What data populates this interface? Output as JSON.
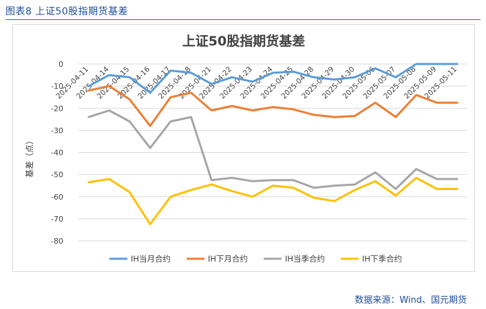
{
  "figure": {
    "caption": "图表8  上证50股指期货基差",
    "source": "数据来源：Wind、国元期货"
  },
  "chart_data": {
    "type": "line",
    "title": "上证50股指期货基差",
    "ylabel": "基差（点）",
    "xlabel": "",
    "ylim": [
      -80,
      0
    ],
    "yticks": [
      0,
      -10,
      -20,
      -30,
      -40,
      -50,
      -60,
      -70,
      -80
    ],
    "grid": true,
    "legend_position": "bottom",
    "categories": [
      "2025-04-11",
      "2025-04-14",
      "2025-04-15",
      "2025-04-16",
      "2025-04-17",
      "2025-04-18",
      "2025-04-21",
      "2025-04-22",
      "2025-04-23",
      "2025-04-24",
      "2025-04-25",
      "2025-04-28",
      "2025-04-29",
      "2025-04-30",
      "2025-05-06",
      "2025-05-07",
      "2025-05-08",
      "2025-05-09",
      "2025-05-11"
    ],
    "series": [
      {
        "name": "IH当月合约",
        "color": "#5b9bd5",
        "values": [
          -10,
          -5,
          -6,
          -13,
          -3,
          -4,
          -9,
          -6,
          -8,
          -4,
          -3.5,
          -6,
          -7,
          -6,
          -2,
          -6,
          0,
          0,
          0
        ]
      },
      {
        "name": "IH下月合约",
        "color": "#ed7d31",
        "values": [
          -12,
          -10,
          -16,
          -28,
          -15,
          -13,
          -21,
          -19,
          -21,
          -19.5,
          -20.5,
          -23,
          -24,
          -23.5,
          -17.5,
          -24,
          -14,
          -17.5,
          -17.5
        ]
      },
      {
        "name": "IH当季合约",
        "color": "#a5a5a5",
        "values": [
          -24,
          -21,
          -26,
          -38,
          -26,
          -24,
          -52.5,
          -51.5,
          -53,
          -52.5,
          -52.5,
          -56,
          -55,
          -54.5,
          -49,
          -56.5,
          -47.5,
          -52,
          -52
        ]
      },
      {
        "name": "IH下季合约",
        "color": "#ffc000",
        "values": [
          -53.5,
          -52,
          -58,
          -72.5,
          -60,
          -57,
          -54.5,
          -57.5,
          -60,
          -55,
          -56,
          -60.5,
          -62,
          -57,
          -53,
          -59.5,
          -51.5,
          -56.5,
          -56.5
        ]
      }
    ]
  }
}
